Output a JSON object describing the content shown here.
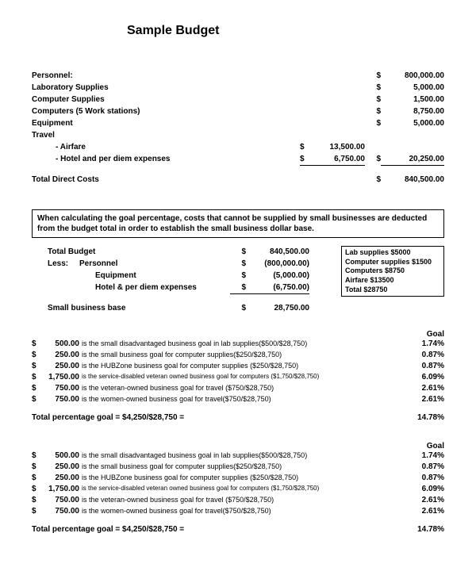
{
  "title": "Sample Budget",
  "items": {
    "personnel": {
      "label": "Personnel:",
      "dollar": "$",
      "amount": "800,000.00"
    },
    "lab": {
      "label": "Laboratory Supplies",
      "dollar": "$",
      "amount": "5,000.00"
    },
    "comp_supplies": {
      "label": "Computer Supplies",
      "dollar": "$",
      "amount": "1,500.00"
    },
    "computers": {
      "label": "Computers (5 Work stations)",
      "dollar": "$",
      "amount": "8,750.00"
    },
    "equipment": {
      "label": "Equipment",
      "dollar": "$",
      "amount": "5,000.00"
    },
    "travel": {
      "label": "Travel"
    },
    "airfare": {
      "label": "- Airfare",
      "d1": "$",
      "a1": "13,500.00"
    },
    "hotel": {
      "label": "- Hotel and per diem expenses",
      "d1": "$",
      "a1": "6,750.00",
      "d2": "$",
      "a2": "20,250.00"
    },
    "total": {
      "label": "Total Direct Costs",
      "dollar": "$",
      "amount": "840,500.00"
    }
  },
  "note": "When calculating the goal percentage, costs that cannot be supplied by small businesses are deducted from the budget total in order to establish the small business dollar base.",
  "calc": {
    "total_budget": {
      "label": "Total Budget",
      "d": "$",
      "a": "840,500.00"
    },
    "less": "Less:",
    "personnel": {
      "label": "Personnel",
      "d": "$",
      "a": "(800,000.00)"
    },
    "equipment": {
      "label": "Equipment",
      "d": "$",
      "a": "(5,000.00)"
    },
    "hotel": {
      "label": "Hotel & per diem expenses",
      "d": "$",
      "a": "(6,750.00)"
    },
    "base": {
      "label": "Small business base",
      "d": "$",
      "a": "28,750.00"
    }
  },
  "sidebox": {
    "l1": "Lab supplies $5000",
    "l2": "Computer supplies $1500",
    "l3": "Computers $8750",
    "l4": "Airfare $13500",
    "l5": "Total $28750"
  },
  "goal_header": "Goal",
  "goals": [
    {
      "d": "$",
      "a": "500.00",
      "t": "is the small disadvantaged business goal in lab supplies($500/$28,750)",
      "cls": "",
      "p": "1.74%"
    },
    {
      "d": "$",
      "a": "250.00",
      "t": "is the small business goal for computer supplies($250/$28,750)",
      "cls": "",
      "p": "0.87%"
    },
    {
      "d": "$",
      "a": "250.00",
      "t": "is the HUBZone business goal for computer supplies ($250/$28,750)",
      "cls": "",
      "p": "0.87%"
    },
    {
      "d": "$",
      "a": "1,750.00",
      "t": "is the service-disabled veteran owned business goal for computers ($1,750/$28,750)",
      "cls": "sm",
      "p": "6.09%"
    },
    {
      "d": "$",
      "a": "750.00",
      "t": "is the veteran-owned business goal for travel ($750/$28,750)",
      "cls": "",
      "p": "2.61%"
    },
    {
      "d": "$",
      "a": "750.00",
      "t": "is the women-owned business goal for travel($750/$28,750)",
      "cls": "",
      "p": "2.61%"
    }
  ],
  "goal_total": {
    "label": "Total percentage goal = $4,250/$28,750 =",
    "p": "14.78%"
  }
}
